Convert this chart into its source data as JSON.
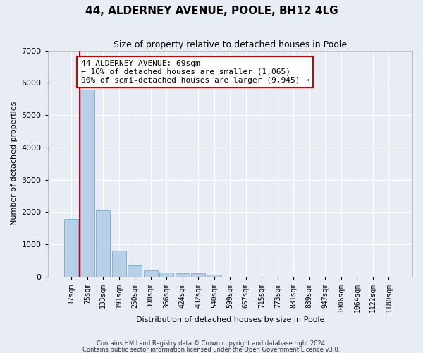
{
  "title": "44, ALDERNEY AVENUE, POOLE, BH12 4LG",
  "subtitle": "Size of property relative to detached houses in Poole",
  "xlabel": "Distribution of detached houses by size in Poole",
  "ylabel": "Number of detached properties",
  "categories": [
    "17sqm",
    "75sqm",
    "133sqm",
    "191sqm",
    "250sqm",
    "308sqm",
    "366sqm",
    "424sqm",
    "482sqm",
    "540sqm",
    "599sqm",
    "657sqm",
    "715sqm",
    "773sqm",
    "831sqm",
    "889sqm",
    "947sqm",
    "1006sqm",
    "1064sqm",
    "1122sqm",
    "1180sqm"
  ],
  "values": [
    1780,
    5780,
    2060,
    800,
    340,
    185,
    120,
    110,
    95,
    65,
    0,
    0,
    0,
    0,
    0,
    0,
    0,
    0,
    0,
    0,
    0
  ],
  "bar_color": "#b8cfe8",
  "bar_edgecolor": "#7aaad0",
  "vline_x": 0.5,
  "vline_color": "#cc0000",
  "annotation_text": "44 ALDERNEY AVENUE: 69sqm\n← 10% of detached houses are smaller (1,065)\n90% of semi-detached houses are larger (9,945) →",
  "annotation_box_color": "white",
  "annotation_box_edgecolor": "#cc0000",
  "ylim": [
    0,
    7000
  ],
  "yticks": [
    0,
    1000,
    2000,
    3000,
    4000,
    5000,
    6000,
    7000
  ],
  "bg_color": "#e8edf5",
  "plot_bg_color": "#e8edf5",
  "grid_color": "white",
  "footnote1": "Contains HM Land Registry data © Crown copyright and database right 2024.",
  "footnote2": "Contains public sector information licensed under the Open Government Licence v3.0.",
  "title_fontsize": 11,
  "subtitle_fontsize": 9,
  "label_fontsize": 8,
  "tick_fontsize": 7,
  "annot_fontsize": 8
}
